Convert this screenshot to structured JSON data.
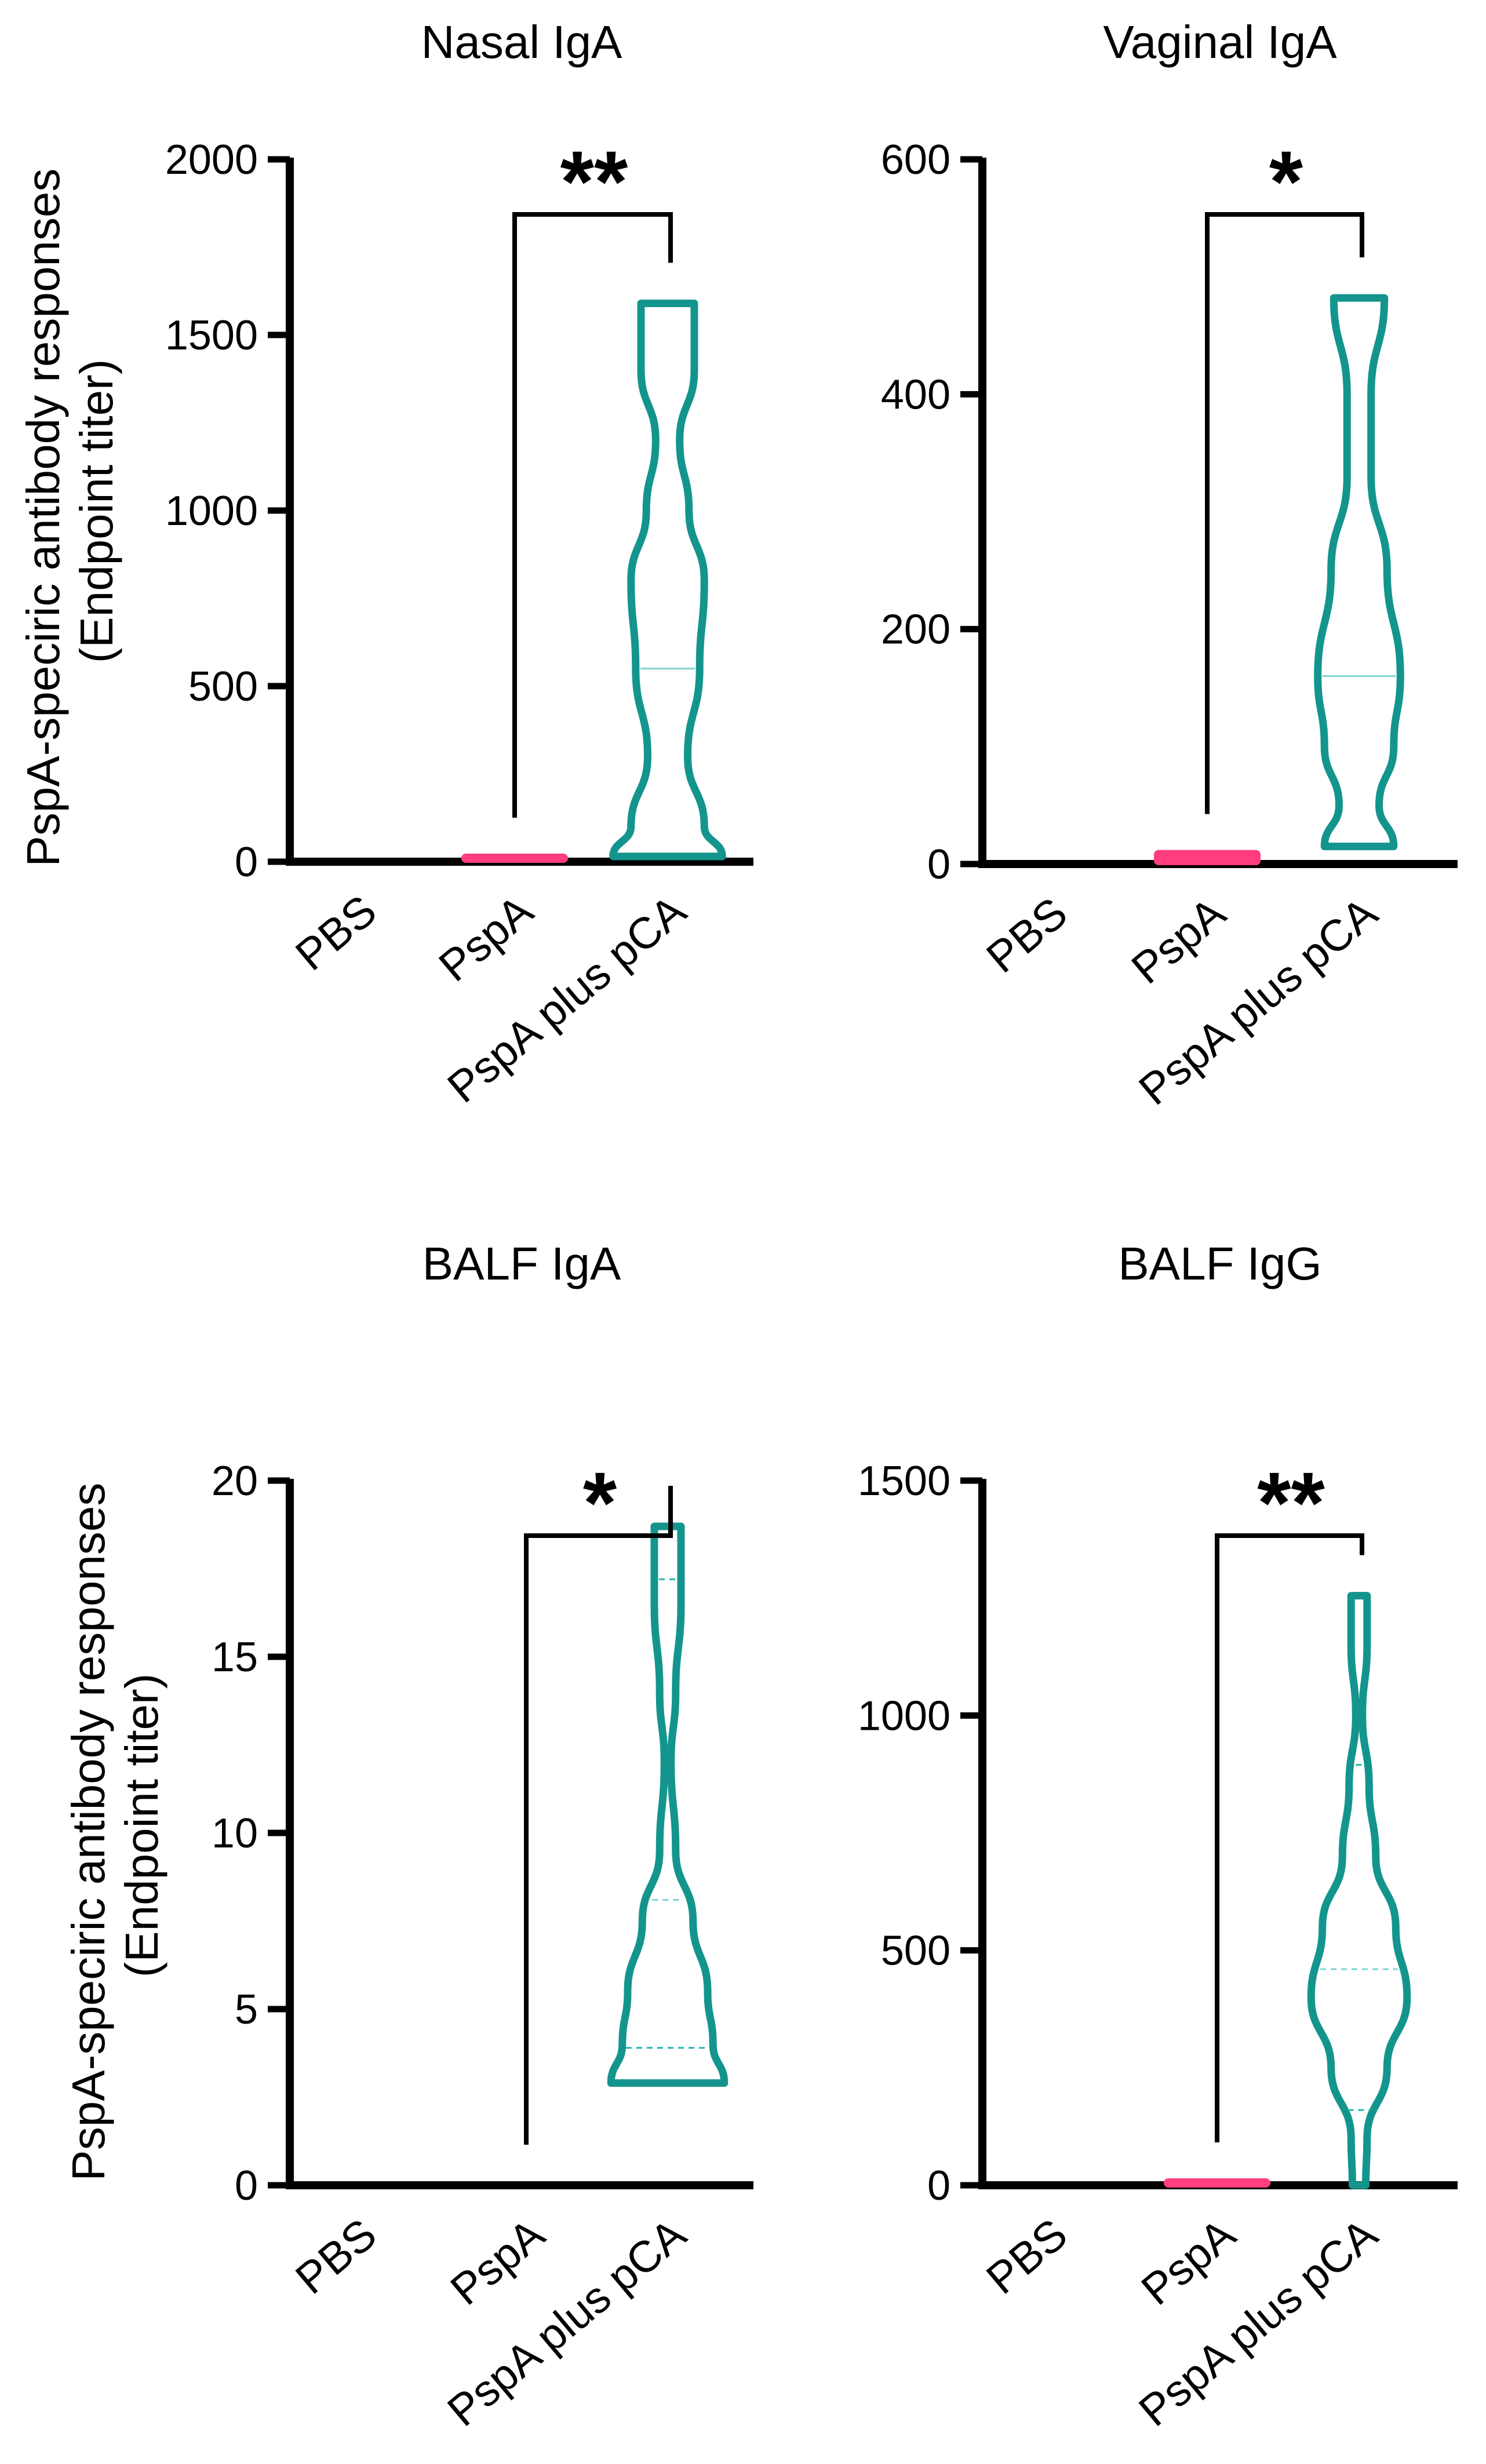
{
  "y_axis_label": {
    "line1": "PspA-speciric antibody responses",
    "line2": "(Endpoint titer)"
  },
  "colors": {
    "pbs": "#000000",
    "pspa": "#ff3d7f",
    "pspa_pca": "#13958e",
    "median": "#7fd3d0",
    "quartile": "#23b3ad"
  },
  "chart_data": [
    {
      "type": "violin",
      "title": "Nasal IgA",
      "categories": [
        "PBS",
        "PspA",
        "PspA plus pCA"
      ],
      "ylim": [
        0,
        2000
      ],
      "yticks": [
        0,
        500,
        1000,
        1500,
        2000
      ],
      "series": [
        {
          "name": "PBS",
          "min": 0,
          "max": 0,
          "median": 0
        },
        {
          "name": "PspA",
          "min": 0,
          "max": 10,
          "median": 5
        },
        {
          "name": "PspA plus pCA",
          "min": 15,
          "max": 1590,
          "median": 550,
          "profile": [
            [
              15,
              0.82
            ],
            [
              100,
              0.55
            ],
            [
              300,
              0.3
            ],
            [
              550,
              0.48
            ],
            [
              800,
              0.55
            ],
            [
              1000,
              0.32
            ],
            [
              1200,
              0.18
            ],
            [
              1400,
              0.4
            ],
            [
              1590,
              0.4
            ]
          ]
        }
      ],
      "significance": {
        "from": "PspA",
        "to": "PspA plus pCA",
        "label": "**"
      }
    },
    {
      "type": "violin",
      "title": "Vaginal IgA",
      "categories": [
        "PBS",
        "PspA",
        "PspA plus pCA"
      ],
      "ylim": [
        0,
        600
      ],
      "yticks": [
        0,
        200,
        400,
        600
      ],
      "series": [
        {
          "name": "PBS",
          "min": 0,
          "max": 0,
          "median": 0
        },
        {
          "name": "PspA",
          "min": 0,
          "max": 8,
          "median": 4
        },
        {
          "name": "PspA plus pCA",
          "min": 15,
          "max": 482,
          "median": 160,
          "profile": [
            [
              15,
              0.52
            ],
            [
              50,
              0.3
            ],
            [
              100,
              0.52
            ],
            [
              160,
              0.62
            ],
            [
              250,
              0.42
            ],
            [
              330,
              0.18
            ],
            [
              400,
              0.18
            ],
            [
              482,
              0.38
            ]
          ]
        }
      ],
      "significance": {
        "from": "PspA",
        "to": "PspA plus pCA",
        "label": "*"
      }
    },
    {
      "type": "violin",
      "title": "BALF IgA",
      "categories": [
        "PBS",
        "PspA",
        "PspA plus pCA"
      ],
      "ylim": [
        0,
        20
      ],
      "yticks": [
        0,
        5,
        10,
        15,
        20
      ],
      "series": [
        {
          "name": "PBS",
          "min": 0,
          "max": 0,
          "median": 0
        },
        {
          "name": "PspA",
          "min": 0,
          "max": 0,
          "median": 0
        },
        {
          "name": "PspA plus pCA",
          "min": 2.9,
          "max": 18.7,
          "median": 8.1,
          "quartiles": [
            3.9,
            17.2
          ],
          "profile": [
            [
              2.9,
              0.85
            ],
            [
              4,
              0.68
            ],
            [
              5.5,
              0.6
            ],
            [
              7.5,
              0.38
            ],
            [
              9.5,
              0.12
            ],
            [
              12,
              0.05
            ],
            [
              14,
              0.12
            ],
            [
              16.5,
              0.2
            ],
            [
              18.7,
              0.2
            ]
          ]
        }
      ],
      "significance": {
        "from": "PspA",
        "to": "PspA plus pCA",
        "label": "*"
      }
    },
    {
      "type": "violin",
      "title": "BALF IgG",
      "categories": [
        "PBS",
        "PspA",
        "PspA plus pCA"
      ],
      "ylim": [
        0,
        1500
      ],
      "yticks": [
        0,
        500,
        1000,
        1500
      ],
      "series": [
        {
          "name": "PBS",
          "min": 0,
          "max": 0,
          "median": 0
        },
        {
          "name": "PspA",
          "min": 0,
          "max": 5,
          "median": 2
        },
        {
          "name": "PspA plus pCA",
          "min": 0,
          "max": 1255,
          "median": 460,
          "quartiles": [
            160,
            895
          ],
          "profile": [
            [
              0,
              0.1
            ],
            [
              100,
              0.12
            ],
            [
              250,
              0.42
            ],
            [
              400,
              0.72
            ],
            [
              550,
              0.55
            ],
            [
              700,
              0.25
            ],
            [
              850,
              0.15
            ],
            [
              1000,
              0.05
            ],
            [
              1150,
              0.12
            ],
            [
              1255,
              0.12
            ]
          ]
        }
      ],
      "significance": {
        "from": "PspA",
        "to": "PspA plus pCA",
        "label": "**"
      }
    }
  ]
}
